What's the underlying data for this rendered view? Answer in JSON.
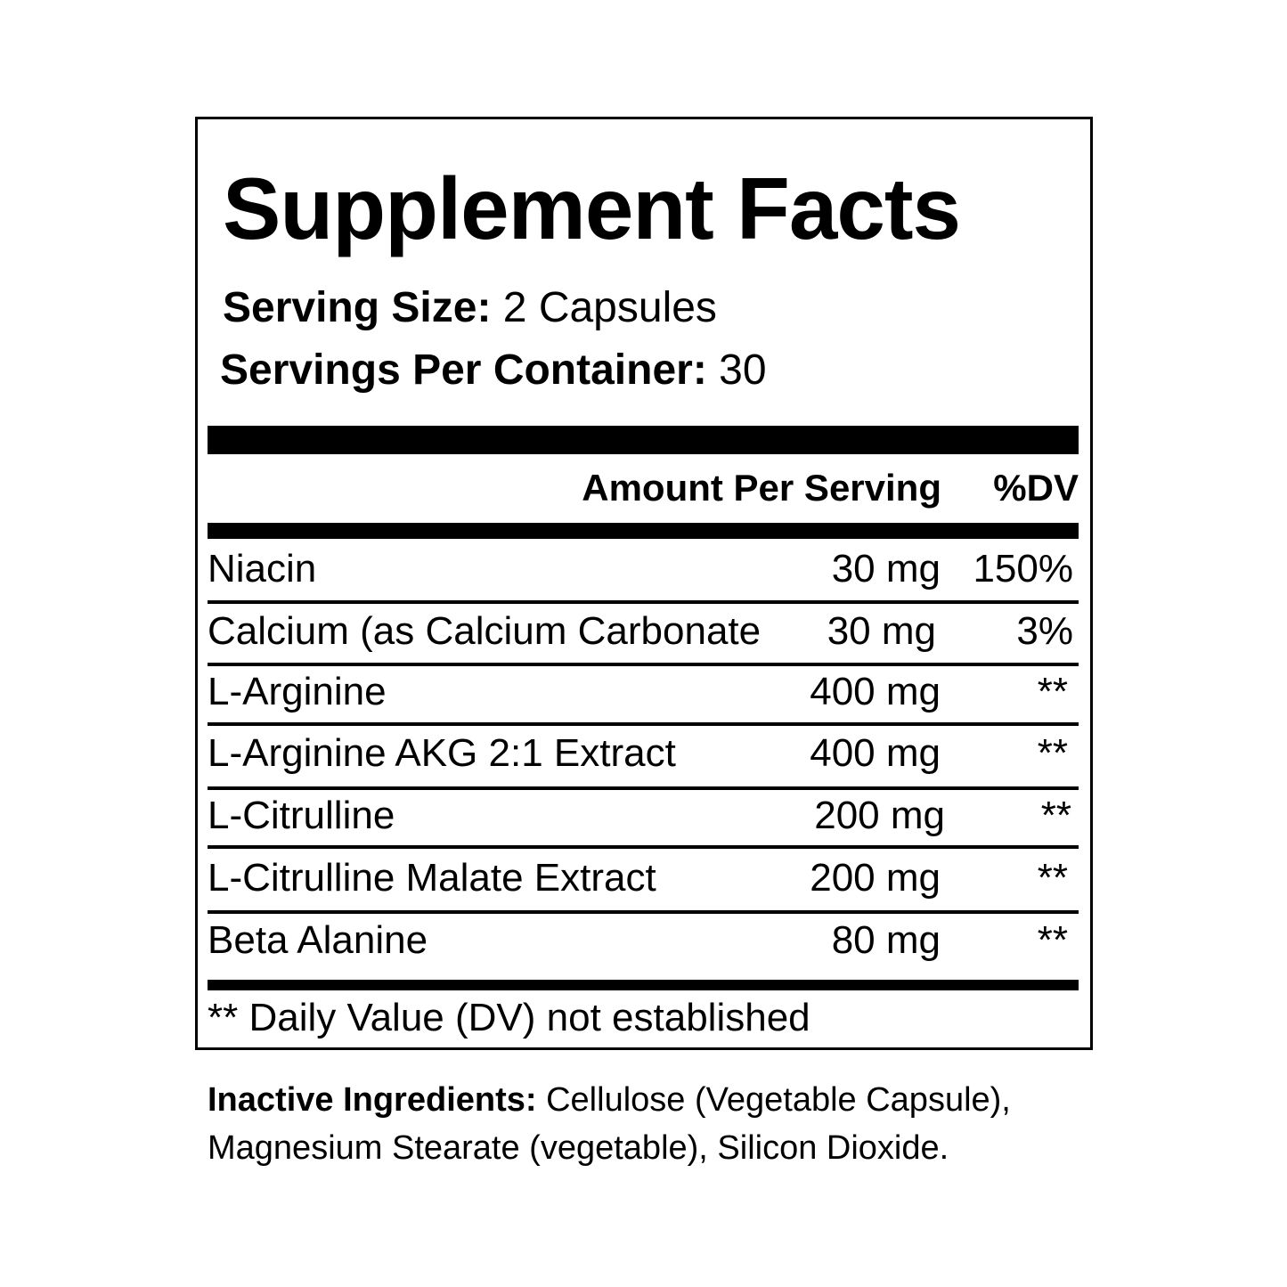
{
  "title": "Supplement Facts",
  "serving_size": {
    "label": "Serving Size:",
    "value": "2 Capsules"
  },
  "servings_per_container": {
    "label": "Servings Per Container:",
    "value": "30"
  },
  "header": {
    "amount": "Amount Per Serving",
    "dv": "%DV"
  },
  "rows": [
    {
      "name": "Niacin",
      "amount": "30 mg",
      "dv": "150%"
    },
    {
      "name": "Calcium (as Calcium Carbonate",
      "amount": "30 mg",
      "dv": "3%"
    },
    {
      "name": "L-Arginine",
      "amount": "400 mg",
      "dv": "**"
    },
    {
      "name": "L-Arginine AKG 2:1 Extract",
      "amount": "400 mg",
      "dv": "**"
    },
    {
      "name": "L-Citrulline",
      "amount": "200 mg",
      "dv": "**"
    },
    {
      "name": "L-Citrulline Malate Extract",
      "amount": "200 mg",
      "dv": "**"
    },
    {
      "name": "Beta Alanine",
      "amount": "80 mg",
      "dv": "**"
    }
  ],
  "footnote": "** Daily Value (DV) not established",
  "inactive": {
    "label": "Inactive Ingredients:",
    "line1": "Cellulose (Vegetable Capsule),",
    "line2": "Magnesium Stearate (vegetable), Silicon Dioxide."
  }
}
